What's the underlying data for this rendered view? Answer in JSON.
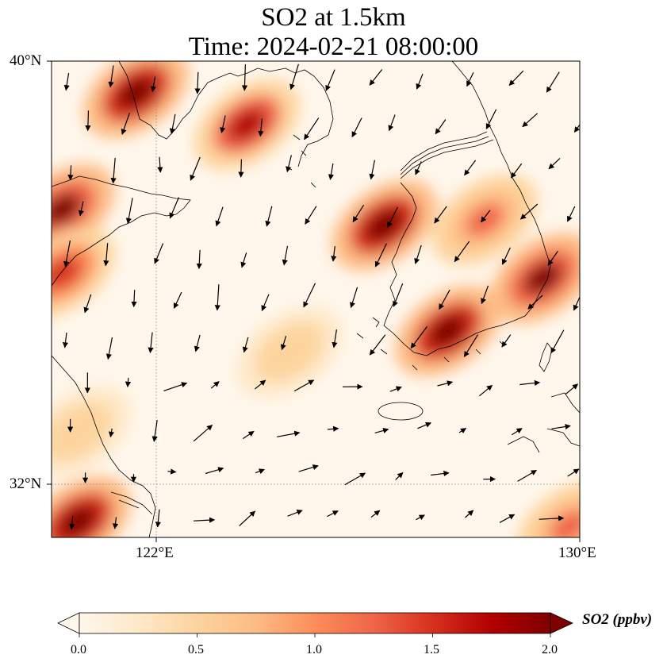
{
  "title": {
    "line1": "SO2 at 1.5km",
    "line2": "Time: 2024-02-21 08:00:00"
  },
  "axes": {
    "lat_ticks": [
      {
        "value": 40,
        "label": "40°N"
      },
      {
        "value": 32,
        "label": "32°N"
      }
    ],
    "lon_ticks": [
      {
        "value": 122,
        "label": "122°E"
      },
      {
        "value": 130,
        "label": "130°E"
      }
    ],
    "lon_range": [
      120,
      130
    ],
    "lat_range": [
      31,
      40
    ],
    "gridlines": "dotted"
  },
  "colorbar": {
    "title": "SO2 (ppbv)",
    "colormap": "OrRd",
    "range": [
      0.0,
      2.0
    ],
    "extend": "both",
    "tick_labels": [
      "0.0",
      "0.5",
      "1.0",
      "1.5",
      "2.0"
    ],
    "tick_values": [
      0.0,
      0.5,
      1.0,
      1.5,
      2.0
    ],
    "colors": [
      "#fff7ec",
      "#fee8c8",
      "#fdd49e",
      "#fdbb84",
      "#fc8d59",
      "#ef6548",
      "#d7301f",
      "#b30000",
      "#7f0000"
    ]
  },
  "chart_data": {
    "type": "heatmap",
    "variable": "SO2",
    "units": "ppbv",
    "hotspots": [
      {
        "lon": 121.6,
        "lat": 39.4,
        "value": 2.0
      },
      {
        "lon": 123.7,
        "lat": 38.8,
        "value": 1.7
      },
      {
        "lon": 120.2,
        "lat": 37.2,
        "value": 1.9
      },
      {
        "lon": 120.2,
        "lat": 36.0,
        "value": 1.6
      },
      {
        "lon": 126.3,
        "lat": 36.9,
        "value": 2.0
      },
      {
        "lon": 129.3,
        "lat": 35.9,
        "value": 1.9
      },
      {
        "lon": 127.5,
        "lat": 34.9,
        "value": 2.0
      },
      {
        "lon": 128.2,
        "lat": 37.0,
        "value": 1.2
      },
      {
        "lon": 120.5,
        "lat": 31.3,
        "value": 2.0
      },
      {
        "lon": 129.8,
        "lat": 31.2,
        "value": 1.2
      },
      {
        "lon": 124.5,
        "lat": 34.5,
        "value": 0.6
      },
      {
        "lon": 120.5,
        "lat": 33.0,
        "value": 0.6
      }
    ],
    "wind_vectors": "black arrows, predominantly from the north-east / north over the Yellow Sea; from the west-south-west over the East China Sea"
  }
}
